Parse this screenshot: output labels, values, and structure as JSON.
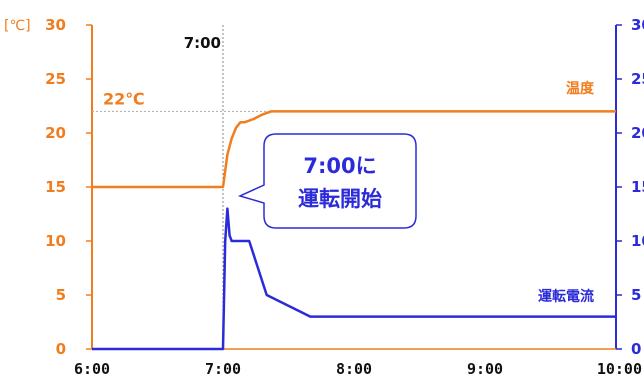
{
  "chart_data": {
    "type": "line",
    "left_axis": {
      "unit": "[℃]",
      "ylim": [
        0,
        30
      ],
      "ticks": [
        "0",
        "5",
        "10",
        "15",
        "20",
        "25",
        "30"
      ]
    },
    "right_axis": {
      "ylim": [
        0,
        30
      ],
      "ticks": [
        "0",
        "5",
        "10",
        "15",
        "20",
        "25",
        "30"
      ]
    },
    "x_axis": {
      "xlim": [
        "6:00",
        "10:00"
      ],
      "ticks": [
        "6:00",
        "7:00",
        "8:00",
        "9:00",
        "10:00"
      ]
    },
    "grid": false,
    "series": [
      {
        "name": "温度",
        "axis": "left",
        "color": "#f07d1e",
        "x": [
          "6:00",
          "7:00",
          "7:01",
          "7:02",
          "7:04",
          "7:06",
          "7:08",
          "7:10",
          "7:14",
          "7:18",
          "7:22",
          "8:00",
          "9:00",
          "10:00"
        ],
        "y": [
          15,
          15,
          16.5,
          18,
          19.5,
          20.5,
          21,
          21,
          21.3,
          21.7,
          22,
          22,
          22,
          22
        ]
      },
      {
        "name": "運転電流",
        "axis": "right",
        "color": "#2b2bd9",
        "x": [
          "6:00",
          "7:00",
          "7:01",
          "7:02",
          "7:03",
          "7:04",
          "7:05",
          "7:12",
          "7:20",
          "7:40",
          "8:00",
          "9:00",
          "10:00"
        ],
        "y": [
          0,
          0,
          10,
          13,
          10.5,
          10,
          10,
          10,
          5,
          3,
          3,
          3,
          3
        ]
      }
    ],
    "annotations": {
      "vertical_line_label": "7:00",
      "vertical_line_x": "7:00",
      "reference_line_label": "22℃",
      "reference_line_y": 22,
      "callout_line1": "7:00に",
      "callout_line2": "運転開始"
    }
  }
}
